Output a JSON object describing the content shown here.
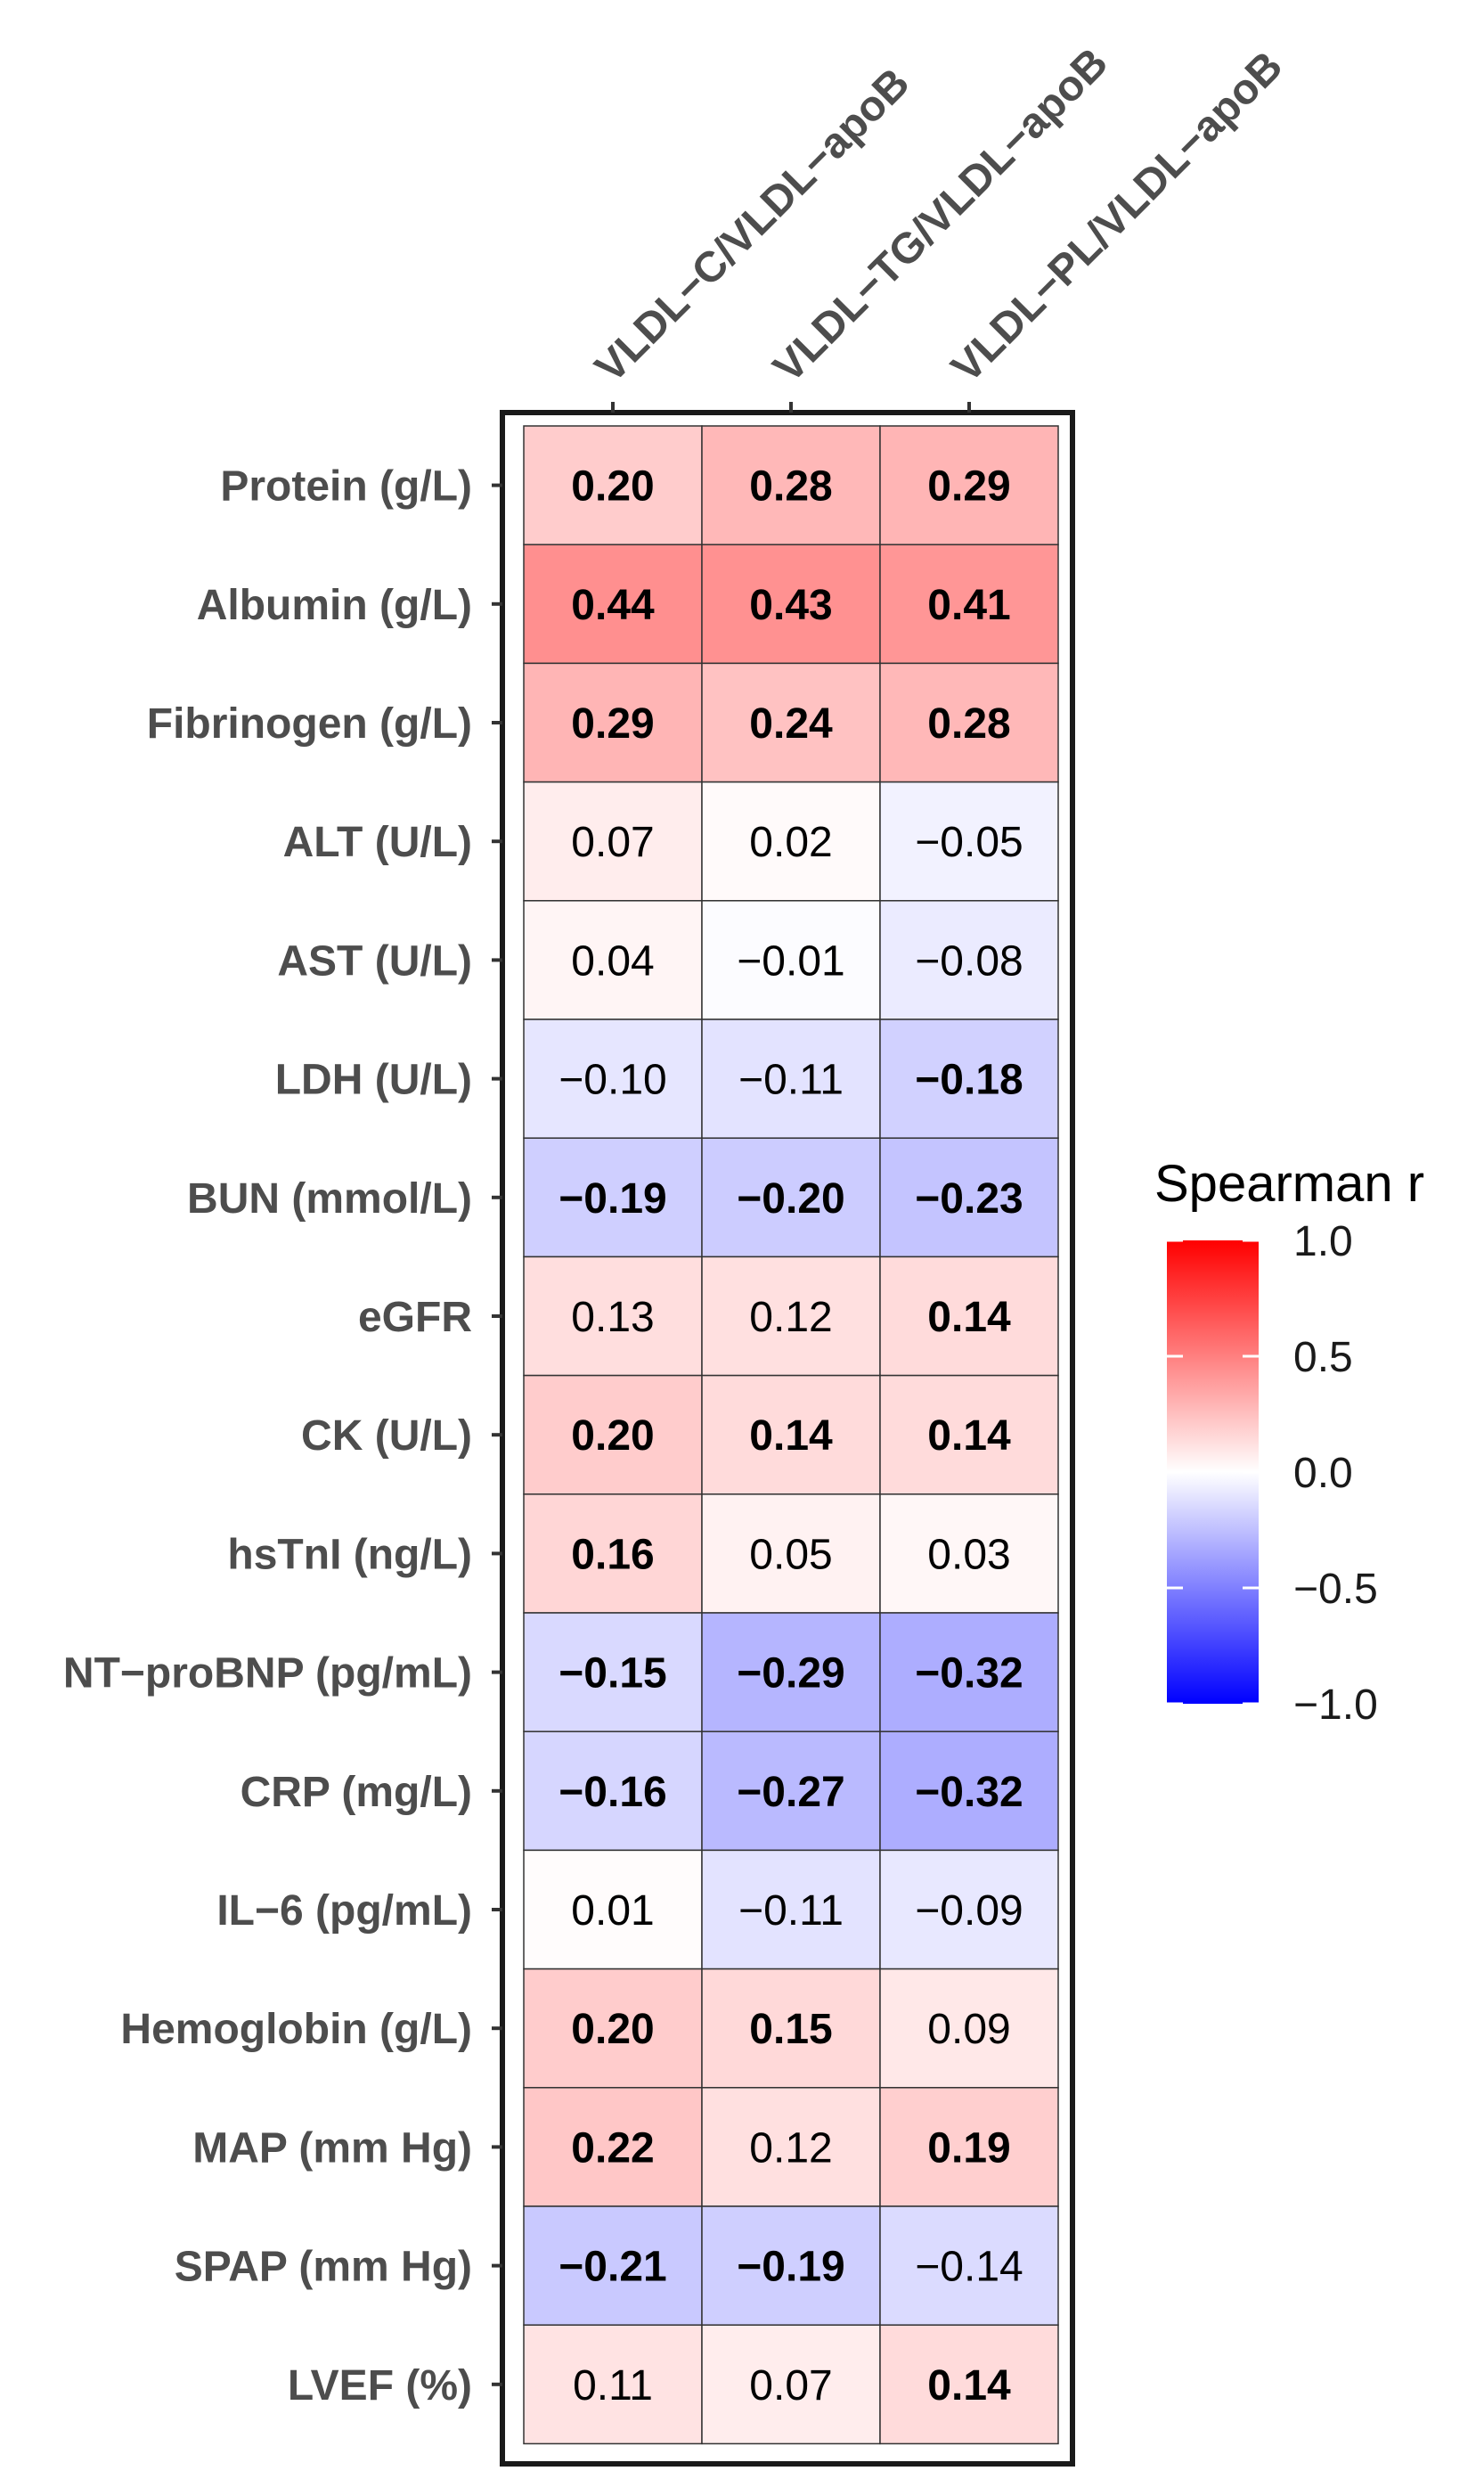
{
  "chart_data": {
    "type": "heatmap",
    "columns": [
      "VLDL−C/VLDL−apoB",
      "VLDL−TG/VLDL−apoB",
      "VLDL−PL/VLDL−apoB"
    ],
    "rows": [
      "Protein (g/L)",
      "Albumin (g/L)",
      "Fibrinogen (g/L)",
      "ALT (U/L)",
      "AST (U/L)",
      "LDH (U/L)",
      "BUN (mmol/L)",
      "eGFR",
      "CK (U/L)",
      "hsTnI (ng/L)",
      "NT−proBNP (pg/mL)",
      "CRP (mg/L)",
      "IL−6 (pg/mL)",
      "Hemoglobin (g/L)",
      "MAP (mm Hg)",
      "SPAP (mm Hg)",
      "LVEF (%)"
    ],
    "values": [
      [
        0.2,
        0.28,
        0.29
      ],
      [
        0.44,
        0.43,
        0.41
      ],
      [
        0.29,
        0.24,
        0.28
      ],
      [
        0.07,
        0.02,
        -0.05
      ],
      [
        0.04,
        -0.01,
        -0.08
      ],
      [
        -0.1,
        -0.11,
        -0.18
      ],
      [
        -0.19,
        -0.2,
        -0.23
      ],
      [
        0.13,
        0.12,
        0.14
      ],
      [
        0.2,
        0.14,
        0.14
      ],
      [
        0.16,
        0.05,
        0.03
      ],
      [
        -0.15,
        -0.29,
        -0.32
      ],
      [
        -0.16,
        -0.27,
        -0.32
      ],
      [
        0.01,
        -0.11,
        -0.09
      ],
      [
        0.2,
        0.15,
        0.09
      ],
      [
        0.22,
        0.12,
        0.19
      ],
      [
        -0.21,
        -0.19,
        -0.14
      ],
      [
        0.11,
        0.07,
        0.14
      ]
    ],
    "labels": [
      [
        "0.20",
        "0.28",
        "0.29"
      ],
      [
        "0.44",
        "0.43",
        "0.41"
      ],
      [
        "0.29",
        "0.24",
        "0.28"
      ],
      [
        "0.07",
        "0.02",
        "−0.05"
      ],
      [
        "0.04",
        "−0.01",
        "−0.08"
      ],
      [
        "−0.10",
        "−0.11",
        "−0.18"
      ],
      [
        "−0.19",
        "−0.20",
        "−0.23"
      ],
      [
        "0.13",
        "0.12",
        "0.14"
      ],
      [
        "0.20",
        "0.14",
        "0.14"
      ],
      [
        "0.16",
        "0.05",
        "0.03"
      ],
      [
        "−0.15",
        "−0.29",
        "−0.32"
      ],
      [
        "−0.16",
        "−0.27",
        "−0.32"
      ],
      [
        "0.01",
        "−0.11",
        "−0.09"
      ],
      [
        "0.20",
        "0.15",
        "0.09"
      ],
      [
        "0.22",
        "0.12",
        "0.19"
      ],
      [
        "−0.21",
        "−0.19",
        "−0.14"
      ],
      [
        "0.11",
        "0.07",
        "0.14"
      ]
    ],
    "significant": [
      [
        true,
        true,
        true
      ],
      [
        true,
        true,
        true
      ],
      [
        true,
        true,
        true
      ],
      [
        false,
        false,
        false
      ],
      [
        false,
        false,
        false
      ],
      [
        false,
        false,
        true
      ],
      [
        true,
        true,
        true
      ],
      [
        false,
        false,
        true
      ],
      [
        true,
        true,
        true
      ],
      [
        true,
        false,
        false
      ],
      [
        true,
        true,
        true
      ],
      [
        true,
        true,
        true
      ],
      [
        false,
        false,
        false
      ],
      [
        true,
        true,
        false
      ],
      [
        true,
        false,
        true
      ],
      [
        true,
        true,
        false
      ],
      [
        false,
        false,
        true
      ]
    ],
    "color_scale": {
      "low": "#0000ff",
      "mid": "#ffffff",
      "high": "#ff0000",
      "min": -1.0,
      "max": 1.0
    },
    "legend": {
      "title": "Spearman r",
      "ticks": [
        1.0,
        0.5,
        0.0,
        -0.5,
        -1.0
      ],
      "tick_labels": [
        "1.0",
        "0.5",
        "0.0",
        "−0.5",
        "−1.0"
      ],
      "placement": "right"
    }
  }
}
